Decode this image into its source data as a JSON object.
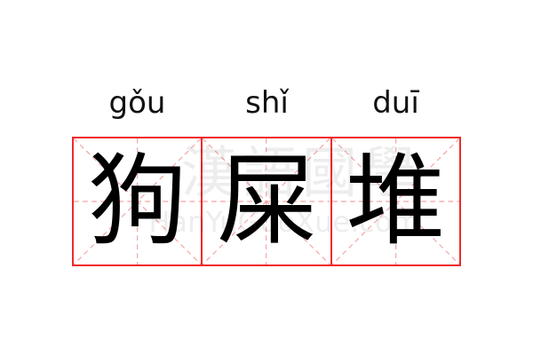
{
  "entries": [
    {
      "pinyin": "gǒu",
      "character": "狗"
    },
    {
      "pinyin": "shǐ",
      "character": "屎"
    },
    {
      "pinyin": "duī",
      "character": "堆"
    }
  ],
  "watermark": {
    "chinese": "漢語國學",
    "latin": "HanYuGuoXue.com"
  },
  "colors": {
    "grid_border": "#f02a2a",
    "grid_guides": "#f5a0a0"
  }
}
